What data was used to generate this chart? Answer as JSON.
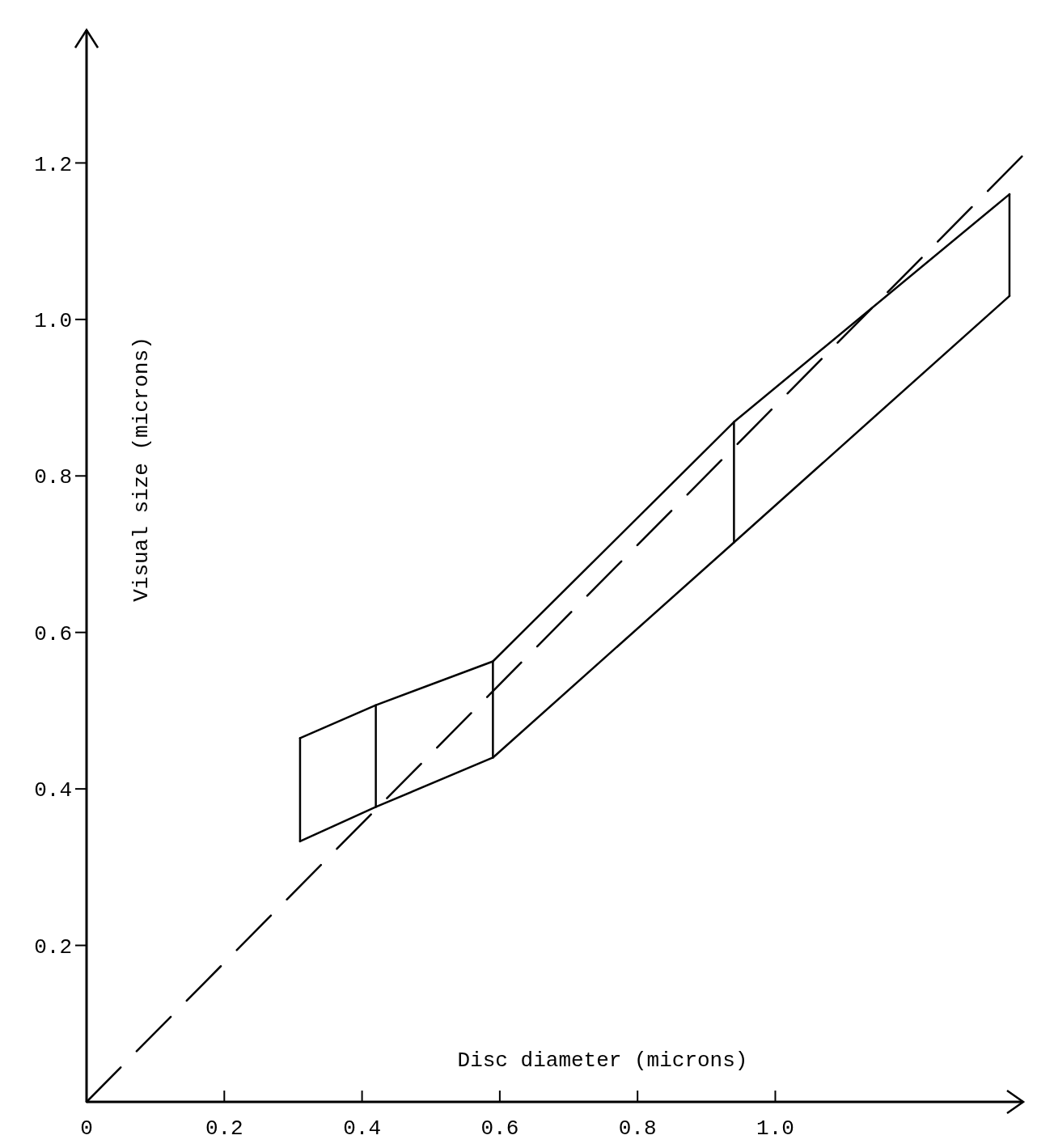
{
  "chart_data": {
    "type": "line",
    "xlabel": "Disc diameter (microns)",
    "ylabel": "Visual size (microns)",
    "xlim": [
      0,
      1.36
    ],
    "ylim": [
      0,
      1.37
    ],
    "xticks": [
      {
        "value": 0,
        "label": "0"
      },
      0.2,
      0.4,
      0.6,
      0.8,
      {
        "value": 1,
        "label": "1.0"
      }
    ],
    "yticks": [
      0.2,
      0.4,
      0.6,
      0.8,
      {
        "value": 1,
        "label": "1.0"
      },
      1.2
    ],
    "grid": false,
    "marker": "none",
    "series": [
      {
        "color": "#000000",
        "line_style": "dashed",
        "x": [
          0,
          1.36
        ],
        "values": [
          0,
          1.21
        ]
      },
      {
        "color": "#000000",
        "line_style": "solid",
        "x": [
          0.31,
          0.42,
          0.59,
          0.94,
          1.34
        ],
        "values": [
          0.465,
          0.507,
          0.563,
          0.869,
          1.16
        ]
      },
      {
        "color": "#000000",
        "line_style": "solid",
        "x": [
          0.31,
          0.42,
          0.59,
          0.94,
          1.34
        ],
        "values": [
          0.333,
          0.377,
          0.44,
          0.715,
          1.03
        ]
      },
      {
        "color": "#000000",
        "line_style": "solid",
        "x": [
          0.31,
          0.31
        ],
        "values": [
          0.333,
          0.465
        ]
      },
      {
        "color": "#000000",
        "line_style": "solid",
        "x": [
          0.42,
          0.42
        ],
        "values": [
          0.377,
          0.507
        ]
      },
      {
        "color": "#000000",
        "line_style": "solid",
        "x": [
          0.59,
          0.59
        ],
        "values": [
          0.44,
          0.563
        ]
      },
      {
        "color": "#000000",
        "line_style": "solid",
        "x": [
          0.94,
          0.94
        ],
        "values": [
          0.715,
          0.869
        ]
      },
      {
        "color": "#000000",
        "line_style": "solid",
        "x": [
          1.34,
          1.34
        ],
        "values": [
          1.03,
          1.16
        ]
      }
    ]
  }
}
